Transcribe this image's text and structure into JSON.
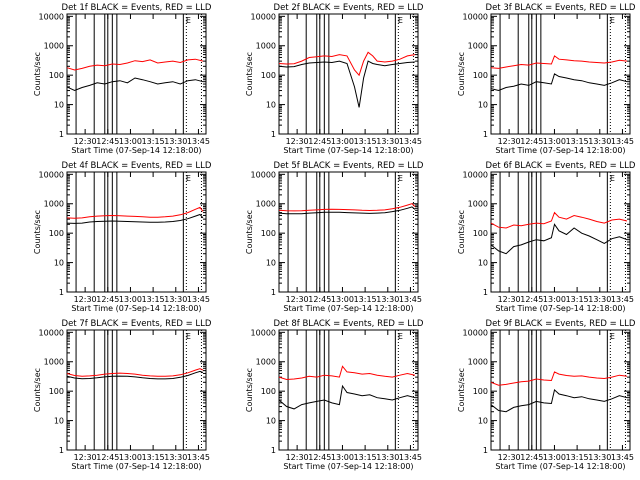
{
  "chart_data": [
    {
      "type": "line",
      "title": "Det 1f BLACK = Events, RED = LLD",
      "xlabel": "Start Time (07-Sep-14 12:18:00)",
      "ylabel": "Counts/sec",
      "x_ticks": [
        "12:30",
        "12:45",
        "13:00",
        "13:15",
        "13:30",
        "13:45"
      ],
      "y_ticks": [
        "1",
        "10",
        "100",
        "1000",
        "10000"
      ],
      "xlim_minutes": [
        0,
        92
      ],
      "ylim": [
        1,
        12000
      ],
      "y_scale": "log",
      "annotation": "E",
      "series": [
        {
          "color": "#ff0000",
          "x": [
            0,
            5,
            10,
            15,
            20,
            25,
            30,
            35,
            40,
            45,
            50,
            55,
            60,
            65,
            70,
            75,
            80,
            85,
            90
          ],
          "values": [
            180,
            150,
            170,
            200,
            220,
            210,
            240,
            230,
            260,
            310,
            290,
            330,
            260,
            280,
            300,
            270,
            330,
            350,
            300
          ]
        },
        {
          "color": "#000000",
          "x": [
            0,
            5,
            10,
            15,
            20,
            25,
            30,
            35,
            40,
            45,
            50,
            55,
            60,
            65,
            70,
            75,
            80,
            85,
            90
          ],
          "values": [
            40,
            30,
            38,
            45,
            55,
            50,
            60,
            65,
            55,
            80,
            70,
            60,
            50,
            55,
            60,
            50,
            65,
            70,
            60
          ]
        }
      ]
    },
    {
      "type": "line",
      "title": "Det 2f BLACK = Events, RED = LLD",
      "xlabel": "Start Time (07-Sep-14 12:18:00)",
      "ylabel": "Counts/sec",
      "x_ticks": [
        "12:30",
        "12:45",
        "13:00",
        "13:15",
        "13:30",
        "13:45"
      ],
      "y_ticks": [
        "1",
        "10",
        "100",
        "1000",
        "10000"
      ],
      "xlim_minutes": [
        0,
        92
      ],
      "ylim": [
        1,
        12000
      ],
      "y_scale": "log",
      "annotation": "E",
      "series": [
        {
          "color": "#ff0000",
          "x": [
            0,
            5,
            10,
            15,
            20,
            25,
            30,
            35,
            40,
            45,
            50,
            53,
            56,
            59,
            62,
            65,
            70,
            75,
            80,
            85,
            90
          ],
          "values": [
            250,
            240,
            245,
            300,
            400,
            420,
            450,
            430,
            500,
            450,
            150,
            100,
            300,
            600,
            450,
            300,
            280,
            300,
            350,
            450,
            500
          ]
        },
        {
          "color": "#000000",
          "x": [
            0,
            5,
            10,
            15,
            20,
            25,
            30,
            35,
            40,
            45,
            50,
            53,
            56,
            59,
            62,
            65,
            70,
            75,
            80,
            85,
            90
          ],
          "values": [
            200,
            190,
            195,
            230,
            260,
            270,
            280,
            270,
            300,
            250,
            40,
            8,
            80,
            300,
            250,
            230,
            210,
            230,
            250,
            270,
            280
          ]
        }
      ]
    },
    {
      "type": "line",
      "title": "Det 3f BLACK = Events, RED = LLD",
      "xlabel": "Start Time (07-Sep-14 12:18:00)",
      "ylabel": "Counts/sec",
      "x_ticks": [
        "12:30",
        "12:45",
        "13:00",
        "13:15",
        "13:30",
        "13:45"
      ],
      "y_ticks": [
        "1",
        "10",
        "100",
        "1000",
        "10000"
      ],
      "xlim_minutes": [
        0,
        92
      ],
      "ylim": [
        1,
        12000
      ],
      "y_scale": "log",
      "annotation": "E",
      "series": [
        {
          "color": "#ff0000",
          "x": [
            0,
            5,
            10,
            15,
            20,
            25,
            30,
            35,
            40,
            42,
            45,
            50,
            55,
            60,
            65,
            70,
            75,
            80,
            85,
            90
          ],
          "values": [
            180,
            170,
            190,
            210,
            230,
            220,
            260,
            250,
            240,
            450,
            350,
            330,
            310,
            300,
            280,
            270,
            260,
            280,
            320,
            300
          ]
        },
        {
          "color": "#000000",
          "x": [
            0,
            5,
            10,
            15,
            20,
            25,
            30,
            35,
            40,
            42,
            45,
            50,
            55,
            60,
            65,
            70,
            75,
            80,
            85,
            90
          ],
          "values": [
            35,
            30,
            38,
            42,
            50,
            45,
            60,
            55,
            50,
            110,
            90,
            80,
            70,
            65,
            55,
            50,
            45,
            55,
            70,
            60
          ]
        }
      ]
    },
    {
      "type": "line",
      "title": "Det 4f BLACK = Events, RED = LLD",
      "xlabel": "Start Time (07-Sep-14 12:18:00)",
      "ylabel": "Counts/sec",
      "x_ticks": [
        "12:30",
        "12:45",
        "13:00",
        "13:15",
        "13:30",
        "13:45"
      ],
      "y_ticks": [
        "1",
        "10",
        "100",
        "1000",
        "10000"
      ],
      "xlim_minutes": [
        0,
        92
      ],
      "ylim": [
        1,
        12000
      ],
      "y_scale": "log",
      "annotation": "E",
      "series": [
        {
          "color": "#ff0000",
          "x": [
            0,
            5,
            10,
            15,
            20,
            25,
            30,
            35,
            40,
            45,
            50,
            55,
            60,
            65,
            70,
            75,
            80,
            85,
            88,
            90
          ],
          "values": [
            330,
            320,
            330,
            360,
            380,
            390,
            400,
            390,
            380,
            370,
            360,
            350,
            350,
            360,
            380,
            420,
            500,
            650,
            750,
            550
          ]
        },
        {
          "color": "#000000",
          "x": [
            0,
            5,
            10,
            15,
            20,
            25,
            30,
            35,
            40,
            45,
            50,
            55,
            60,
            65,
            70,
            75,
            80,
            85,
            88,
            90
          ],
          "values": [
            220,
            215,
            220,
            240,
            250,
            255,
            260,
            255,
            250,
            245,
            240,
            235,
            235,
            240,
            250,
            270,
            310,
            380,
            430,
            330
          ]
        }
      ]
    },
    {
      "type": "line",
      "title": "Det 5f BLACK = Events, RED = LLD",
      "xlabel": "Start Time (07-Sep-14 12:18:00)",
      "ylabel": "Counts/sec",
      "x_ticks": [
        "12:30",
        "12:45",
        "13:00",
        "13:15",
        "13:30",
        "13:45"
      ],
      "y_ticks": [
        "1",
        "10",
        "100",
        "1000",
        "10000"
      ],
      "xlim_minutes": [
        0,
        92
      ],
      "ylim": [
        1,
        12000
      ],
      "y_scale": "log",
      "annotation": "E",
      "series": [
        {
          "color": "#ff0000",
          "x": [
            0,
            5,
            10,
            15,
            20,
            25,
            30,
            35,
            40,
            45,
            50,
            55,
            60,
            65,
            70,
            75,
            80,
            85,
            88,
            90
          ],
          "values": [
            600,
            580,
            570,
            580,
            600,
            620,
            640,
            650,
            640,
            630,
            620,
            600,
            590,
            600,
            620,
            680,
            760,
            900,
            1000,
            800
          ]
        },
        {
          "color": "#000000",
          "x": [
            0,
            5,
            10,
            15,
            20,
            25,
            30,
            35,
            40,
            45,
            50,
            55,
            60,
            65,
            70,
            75,
            80,
            85,
            88,
            90
          ],
          "values": [
            480,
            460,
            455,
            460,
            480,
            495,
            510,
            515,
            510,
            500,
            490,
            480,
            470,
            480,
            495,
            540,
            600,
            700,
            780,
            650
          ]
        }
      ]
    },
    {
      "type": "line",
      "title": "Det 6f BLACK = Events, RED = LLD",
      "xlabel": "Start Time (07-Sep-14 12:18:00)",
      "ylabel": "Counts/sec",
      "x_ticks": [
        "12:30",
        "12:45",
        "13:00",
        "13:15",
        "13:30",
        "13:45"
      ],
      "y_ticks": [
        "1",
        "10",
        "100",
        "1000",
        "10000"
      ],
      "xlim_minutes": [
        0,
        92
      ],
      "ylim": [
        1,
        12000
      ],
      "y_scale": "log",
      "annotation": "E",
      "series": [
        {
          "color": "#ff0000",
          "x": [
            0,
            5,
            10,
            15,
            20,
            25,
            30,
            35,
            40,
            42,
            45,
            50,
            55,
            60,
            65,
            70,
            75,
            80,
            85,
            90
          ],
          "values": [
            220,
            160,
            150,
            190,
            180,
            200,
            220,
            210,
            260,
            500,
            350,
            300,
            400,
            350,
            300,
            250,
            220,
            280,
            300,
            260
          ]
        },
        {
          "color": "#000000",
          "x": [
            0,
            5,
            10,
            15,
            20,
            25,
            30,
            35,
            40,
            42,
            45,
            50,
            55,
            60,
            65,
            70,
            75,
            80,
            85,
            90
          ],
          "values": [
            40,
            25,
            20,
            35,
            40,
            50,
            60,
            55,
            70,
            200,
            120,
            90,
            150,
            100,
            80,
            60,
            45,
            65,
            75,
            60
          ]
        }
      ]
    },
    {
      "type": "line",
      "title": "Det 7f BLACK = Events, RED = LLD",
      "xlabel": "Start Time (07-Sep-14 12:18:00)",
      "ylabel": "Counts/sec",
      "x_ticks": [
        "12:30",
        "12:45",
        "13:00",
        "13:15",
        "13:30",
        "13:45"
      ],
      "y_ticks": [
        "1",
        "10",
        "100",
        "1000",
        "10000"
      ],
      "xlim_minutes": [
        0,
        92
      ],
      "ylim": [
        1,
        12000
      ],
      "y_scale": "log",
      "annotation": "E",
      "series": [
        {
          "color": "#ff0000",
          "x": [
            0,
            5,
            10,
            15,
            20,
            25,
            30,
            35,
            40,
            45,
            50,
            55,
            60,
            65,
            70,
            75,
            80,
            85,
            88,
            90
          ],
          "values": [
            400,
            340,
            320,
            330,
            350,
            380,
            400,
            410,
            400,
            380,
            350,
            330,
            320,
            320,
            330,
            360,
            420,
            520,
            580,
            520
          ]
        },
        {
          "color": "#000000",
          "x": [
            0,
            5,
            10,
            15,
            20,
            25,
            30,
            35,
            40,
            45,
            50,
            55,
            60,
            65,
            70,
            75,
            80,
            85,
            88,
            90
          ],
          "values": [
            320,
            280,
            265,
            270,
            285,
            305,
            320,
            325,
            320,
            305,
            285,
            270,
            262,
            262,
            270,
            295,
            340,
            420,
            470,
            430
          ]
        }
      ]
    },
    {
      "type": "line",
      "title": "Det 8f BLACK = Events, RED = LLD",
      "xlabel": "Start Time (07-Sep-14 12:18:00)",
      "ylabel": "Counts/sec",
      "x_ticks": [
        "12:30",
        "12:45",
        "13:00",
        "13:15",
        "13:30",
        "13:45"
      ],
      "y_ticks": [
        "1",
        "10",
        "100",
        "1000",
        "10000"
      ],
      "xlim_minutes": [
        0,
        92
      ],
      "ylim": [
        1,
        12000
      ],
      "y_scale": "log",
      "annotation": "E",
      "series": [
        {
          "color": "#ff0000",
          "x": [
            0,
            5,
            10,
            15,
            20,
            25,
            30,
            35,
            40,
            42,
            45,
            50,
            55,
            60,
            65,
            70,
            75,
            80,
            85,
            90
          ],
          "values": [
            300,
            250,
            260,
            280,
            320,
            300,
            350,
            330,
            300,
            700,
            450,
            420,
            380,
            400,
            350,
            320,
            300,
            350,
            400,
            350
          ]
        },
        {
          "color": "#000000",
          "x": [
            0,
            5,
            10,
            15,
            20,
            25,
            30,
            35,
            40,
            42,
            45,
            50,
            55,
            60,
            65,
            70,
            75,
            80,
            85,
            90
          ],
          "values": [
            50,
            30,
            25,
            35,
            40,
            45,
            50,
            40,
            35,
            150,
            90,
            80,
            70,
            75,
            60,
            55,
            50,
            60,
            70,
            60
          ]
        }
      ]
    },
    {
      "type": "line",
      "title": "Det 9f BLACK = Events, RED = LLD",
      "xlabel": "Start Time (07-Sep-14 12:18:00)",
      "ylabel": "Counts/sec",
      "x_ticks": [
        "12:30",
        "12:45",
        "13:00",
        "13:15",
        "13:30",
        "13:45"
      ],
      "y_ticks": [
        "1",
        "10",
        "100",
        "1000",
        "10000"
      ],
      "xlim_minutes": [
        0,
        92
      ],
      "ylim": [
        1,
        12000
      ],
      "y_scale": "log",
      "annotation": "E",
      "series": [
        {
          "color": "#ff0000",
          "x": [
            0,
            5,
            10,
            15,
            20,
            25,
            30,
            35,
            40,
            42,
            45,
            50,
            55,
            60,
            65,
            70,
            75,
            80,
            85,
            90
          ],
          "values": [
            200,
            160,
            170,
            190,
            210,
            220,
            260,
            240,
            230,
            450,
            380,
            340,
            320,
            330,
            300,
            280,
            270,
            300,
            350,
            320
          ]
        },
        {
          "color": "#000000",
          "x": [
            0,
            5,
            10,
            15,
            20,
            25,
            30,
            35,
            40,
            42,
            45,
            50,
            55,
            60,
            65,
            70,
            75,
            80,
            85,
            90
          ],
          "values": [
            35,
            22,
            20,
            28,
            32,
            35,
            45,
            40,
            38,
            110,
            80,
            70,
            60,
            65,
            55,
            50,
            45,
            55,
            70,
            60
          ]
        }
      ]
    }
  ],
  "vertical_markers": {
    "solid_minutes": [
      6,
      18,
      25,
      27,
      30,
      33,
      77
    ],
    "dotted_minutes": [
      0,
      79,
      89
    ]
  }
}
